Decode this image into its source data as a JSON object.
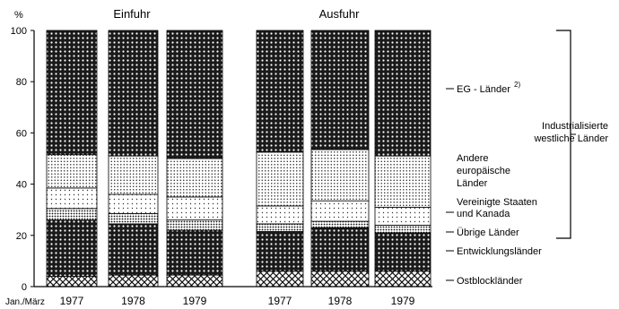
{
  "chart_data": {
    "type": "bar",
    "stacked": true,
    "y_unit": "%",
    "ylim": [
      0,
      100
    ],
    "y_ticks": [
      0,
      20,
      40,
      60,
      80,
      100
    ],
    "x_axis_prefix": "Jan./März",
    "groups": [
      {
        "label": "Einfuhr",
        "categories": [
          "1977",
          "1978",
          "1979"
        ]
      },
      {
        "label": "Ausfuhr",
        "categories": [
          "1977",
          "1978",
          "1979"
        ]
      }
    ],
    "categories": [
      "1977",
      "1978",
      "1979",
      "1977",
      "1978",
      "1979"
    ],
    "series": [
      {
        "name": "Ostblockländer",
        "pattern": "crosshatch-light",
        "values": [
          4,
          4.5,
          4.5,
          6,
          6,
          6
        ]
      },
      {
        "name": "Entwicklungsländer",
        "pattern": "crosshatch-dense",
        "values": [
          22,
          20,
          17.5,
          15.5,
          17,
          15
        ]
      },
      {
        "name": "Übrige Länder",
        "pattern": "dots-dense",
        "values": [
          4.5,
          4,
          4,
          3,
          2.5,
          3
        ]
      },
      {
        "name": "Vereinigte Staaten und Kanada",
        "pattern": "dots-light",
        "values": [
          8,
          7.5,
          9,
          7,
          8,
          7
        ]
      },
      {
        "name": "Andere europäische Länder",
        "pattern": "dots-medium",
        "values": [
          13,
          15,
          15,
          21,
          20,
          20
        ]
      },
      {
        "name": "EG - Länder 2)",
        "pattern": "crosshatch-dense",
        "values": [
          48.5,
          49,
          50,
          47.5,
          46.5,
          49
        ]
      }
    ],
    "legend_labels": {
      "eg": "EG - Länder",
      "eg_sup": "2)",
      "andere": [
        "Andere",
        "europäische",
        "Länder"
      ],
      "usa": [
        "Vereinigte Staaten",
        "und Kanada"
      ],
      "uebrige": "Übrige Länder",
      "entw": "Entwicklungsländer",
      "ost": "Ostblockländer"
    },
    "bracket_label": [
      "Industrialisierte",
      "westliche Länder"
    ]
  }
}
